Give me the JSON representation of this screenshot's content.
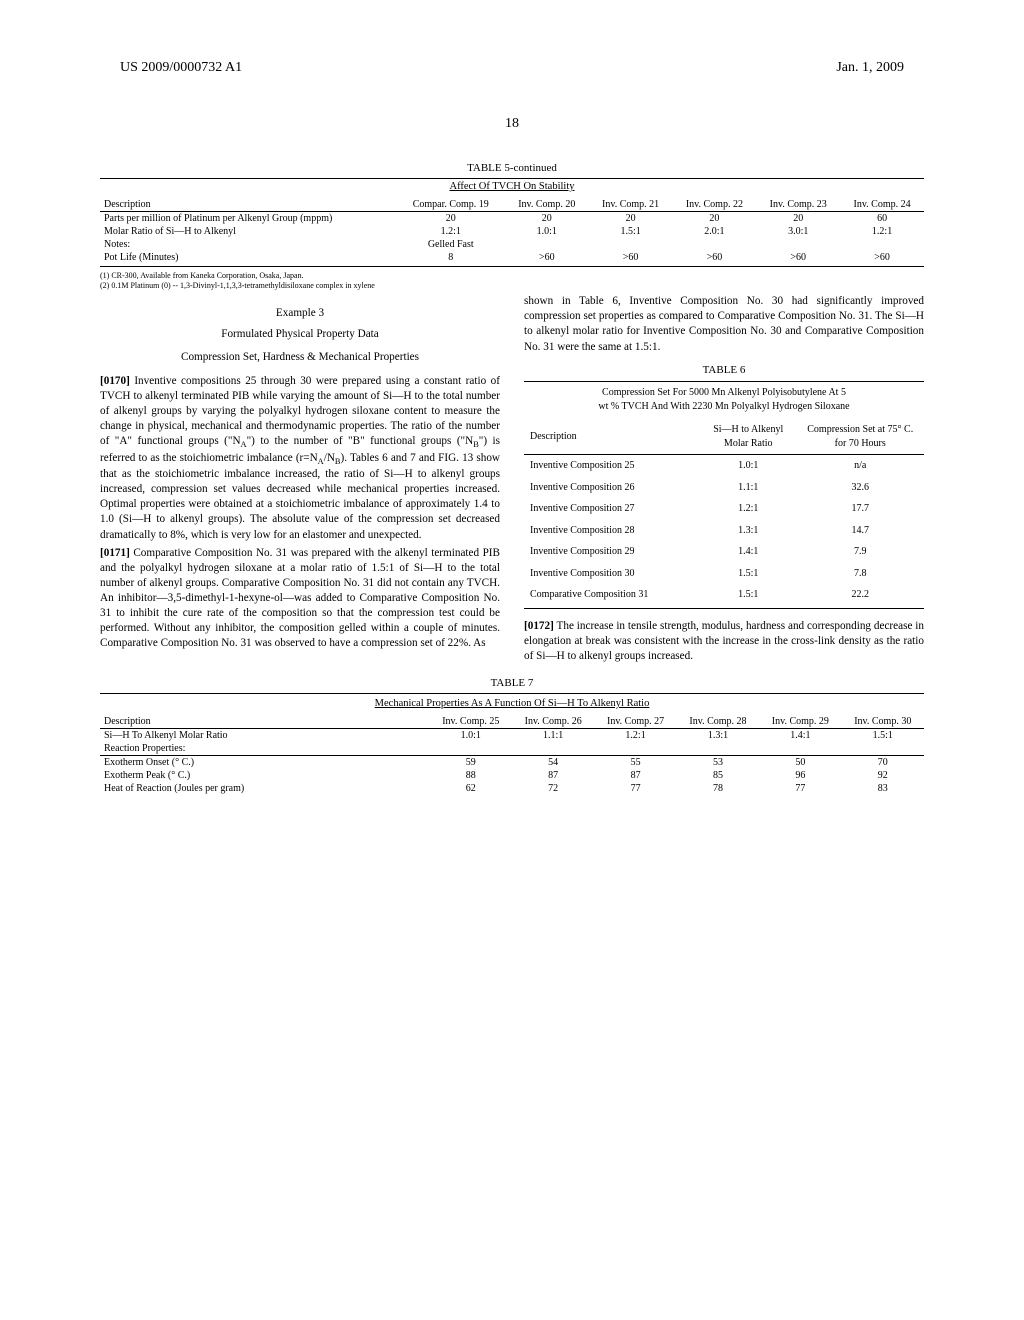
{
  "header": {
    "pub_number": "US 2009/0000732 A1",
    "date": "Jan. 1, 2009",
    "page_number": "18"
  },
  "table5": {
    "title": "TABLE 5-continued",
    "subtitle": "Affect Of TVCH On Stability",
    "columns": [
      "Description",
      "Compar. Comp. 19",
      "Inv. Comp. 20",
      "Inv. Comp. 21",
      "Inv. Comp. 22",
      "Inv. Comp. 23",
      "Inv. Comp. 24"
    ],
    "rows": [
      [
        "Parts per million of Platinum per Alkenyl Group (mppm)",
        "20",
        "20",
        "20",
        "20",
        "20",
        "60"
      ],
      [
        "Molar Ratio of Si—H to Alkenyl",
        "1.2:1",
        "1.0:1",
        "1.5:1",
        "2.0:1",
        "3.0:1",
        "1.2:1"
      ],
      [
        "Notes:",
        "Gelled Fast",
        "",
        "",
        "",
        "",
        ""
      ],
      [
        "Pot Life (Minutes)",
        "8",
        ">60",
        ">60",
        ">60",
        ">60",
        ">60"
      ]
    ],
    "notes": [
      "(1) CR-300, Available from Kaneka Corporation, Osaka, Japan.",
      "(2) 0.1M Platinum (0) -- 1,3-Divinyl-1,1,3,3-tetramethyldisiloxane complex in xylene"
    ]
  },
  "left_col": {
    "example_heading": "Example 3",
    "example_sub1": "Formulated Physical Property Data",
    "example_sub2": "Compression Set, Hardness & Mechanical Properties",
    "para_0170_num": "[0170]",
    "para_0170": " Inventive compositions 25 through 30 were prepared using a constant ratio of TVCH to alkenyl terminated PIB while varying the amount of Si—H to the total number of alkenyl groups by varying the polyalkyl hydrogen siloxane content to measure the change in physical, mechanical and thermodynamic properties. The ratio of the number of \"A\" functional groups (\"N",
    "para_0170_a": "A",
    "para_0170_mid": "\") to the number of \"B\" functional groups (\"N",
    "para_0170_b": "B",
    "para_0170_mid2": "\") is referred to as the stoichiometric imbalance (r=N",
    "para_0170_a2": "A",
    "para_0170_slash": "/N",
    "para_0170_b2": "B",
    "para_0170_end": "). Tables 6 and 7 and FIG. 13 show that as the stoichiometric imbalance increased, the ratio of Si—H to alkenyl groups increased, compression set values decreased while mechanical properties increased. Optimal properties were obtained at a stoichiometric imbalance of approximately 1.4 to 1.0 (Si—H to alkenyl groups). The absolute value of the compression set decreased dramatically to 8%, which is very low for an elastomer and unexpected.",
    "para_0171_num": "[0171]",
    "para_0171": " Comparative Composition No. 31 was prepared with the alkenyl terminated PIB and the polyalkyl hydrogen siloxane at a molar ratio of 1.5:1 of Si—H to the total number of alkenyl groups. Comparative Composition No. 31 did not contain any TVCH. An inhibitor—3,5-dimethyl-1-hexyne-ol—was added to Comparative Composition No. 31 to inhibit the cure rate of the composition so that the compression test could be performed. Without any inhibitor, the composition gelled within a couple of minutes. Comparative Composition No. 31 was observed to have a compression set of 22%. As"
  },
  "right_col": {
    "para_top": "shown in Table 6, Inventive Composition No. 30 had significantly improved compression set properties as compared to Comparative Composition No. 31. The Si—H to alkenyl molar ratio for Inventive Composition No. 30 and Comparative Composition No. 31 were the same at 1.5:1.",
    "table6": {
      "title": "TABLE 6",
      "subtitle1": "Compression Set For 5000 Mn Alkenyl Polyisobutylene At 5",
      "subtitle2": "wt % TVCH And With 2230 Mn Polyalkyl Hydrogen Siloxane",
      "col_headers": [
        "Description",
        "Si—H to Alkenyl Molar Ratio",
        "Compression Set at 75° C. for 70 Hours"
      ],
      "rows": [
        [
          "Inventive Composition 25",
          "1.0:1",
          "n/a"
        ],
        [
          "Inventive Composition 26",
          "1.1:1",
          "32.6"
        ],
        [
          "Inventive Composition 27",
          "1.2:1",
          "17.7"
        ],
        [
          "Inventive Composition 28",
          "1.3:1",
          "14.7"
        ],
        [
          "Inventive Composition 29",
          "1.4:1",
          "7.9"
        ],
        [
          "Inventive Composition 30",
          "1.5:1",
          "7.8"
        ],
        [
          "Comparative Composition 31",
          "1.5:1",
          "22.2"
        ]
      ]
    },
    "para_0172_num": "[0172]",
    "para_0172": " The increase in tensile strength, modulus, hardness and corresponding decrease in elongation at break was consistent with the increase in the cross-link density as the ratio of Si—H to alkenyl groups increased."
  },
  "table7": {
    "title": "TABLE 7",
    "subtitle": "Mechanical Properties As A Function Of Si—H To Alkenyl Ratio",
    "columns": [
      "Description",
      "Inv. Comp. 25",
      "Inv. Comp. 26",
      "Inv. Comp. 27",
      "Inv. Comp. 28",
      "Inv. Comp. 29",
      "Inv. Comp. 30"
    ],
    "rows": [
      [
        "Si—H To Alkenyl Molar Ratio",
        "1.0:1",
        "1.1:1",
        "1.2:1",
        "1.3:1",
        "1.4:1",
        "1.5:1"
      ],
      [
        "Reaction Properties:",
        "",
        "",
        "",
        "",
        "",
        ""
      ],
      [
        "",
        "",
        "",
        "",
        "",
        "",
        ""
      ],
      [
        "Exotherm Onset (° C.)",
        "59",
        "54",
        "55",
        "53",
        "50",
        "70"
      ],
      [
        "Exotherm Peak (° C.)",
        "88",
        "87",
        "87",
        "85",
        "96",
        "92"
      ],
      [
        "Heat of Reaction (Joules per gram)",
        "62",
        "72",
        "77",
        "78",
        "77",
        "83"
      ]
    ]
  }
}
